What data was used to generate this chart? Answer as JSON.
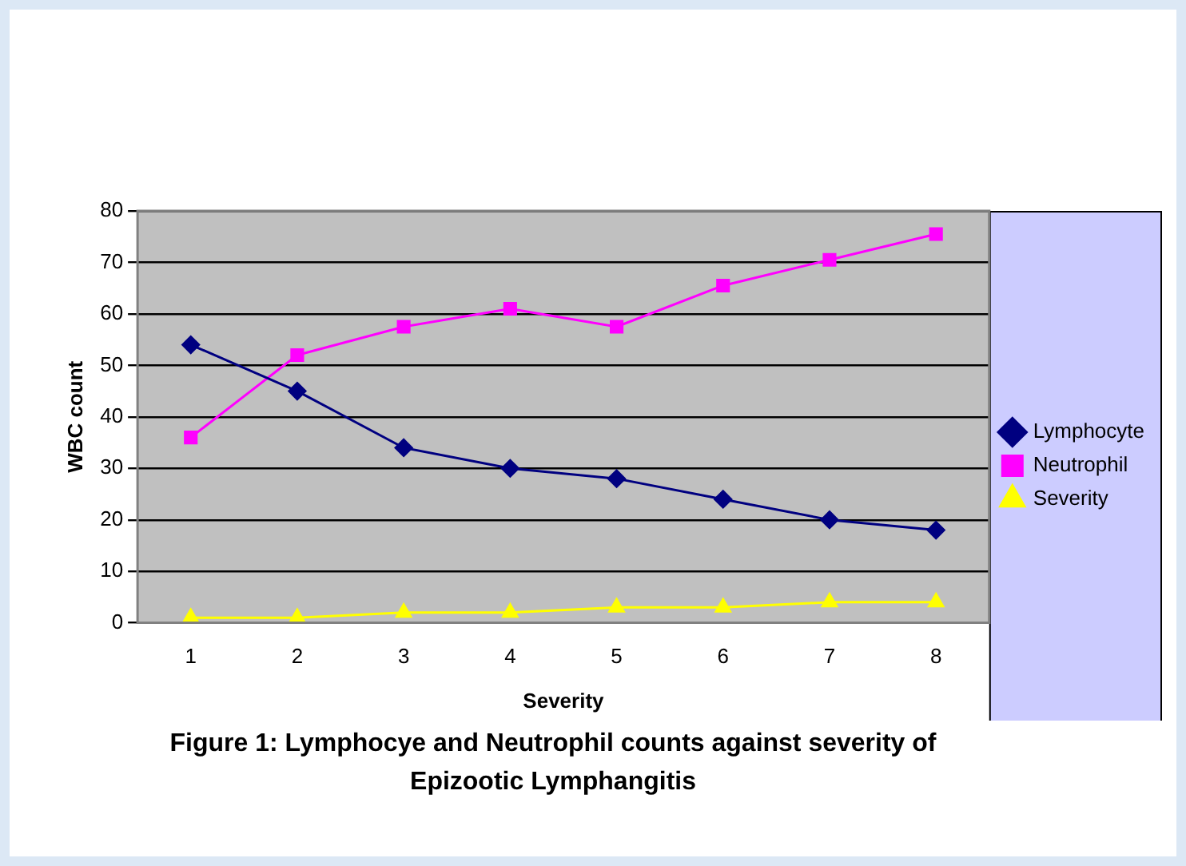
{
  "chart_data": {
    "type": "line",
    "xlabel": "Severity",
    "ylabel": "WBC count",
    "categories": [
      "1",
      "2",
      "3",
      "4",
      "5",
      "6",
      "7",
      "8"
    ],
    "series": [
      {
        "name": "Lymphocyte",
        "color": "#000080",
        "marker": "diamond",
        "values": [
          54,
          45,
          34,
          30,
          28,
          24,
          20,
          18
        ]
      },
      {
        "name": "Neutrophil",
        "color": "#ff00ff",
        "marker": "square",
        "values": [
          36,
          52,
          57.5,
          61,
          57.5,
          65.5,
          70.5,
          75.5
        ]
      },
      {
        "name": "Severity",
        "color": "#ffff00",
        "marker": "triangle",
        "values": [
          1,
          1,
          2,
          2,
          3,
          3,
          4,
          4
        ]
      }
    ],
    "ylim": [
      0,
      80
    ],
    "yticks": [
      0,
      10,
      20,
      30,
      40,
      50,
      60,
      70,
      80
    ],
    "grid": "y",
    "legend": "right",
    "line_style": "solid",
    "annotations": [
      "Figure 1: Lymphocye and Neutrophil counts against severity of Epizootic Lymphangitis"
    ]
  }
}
